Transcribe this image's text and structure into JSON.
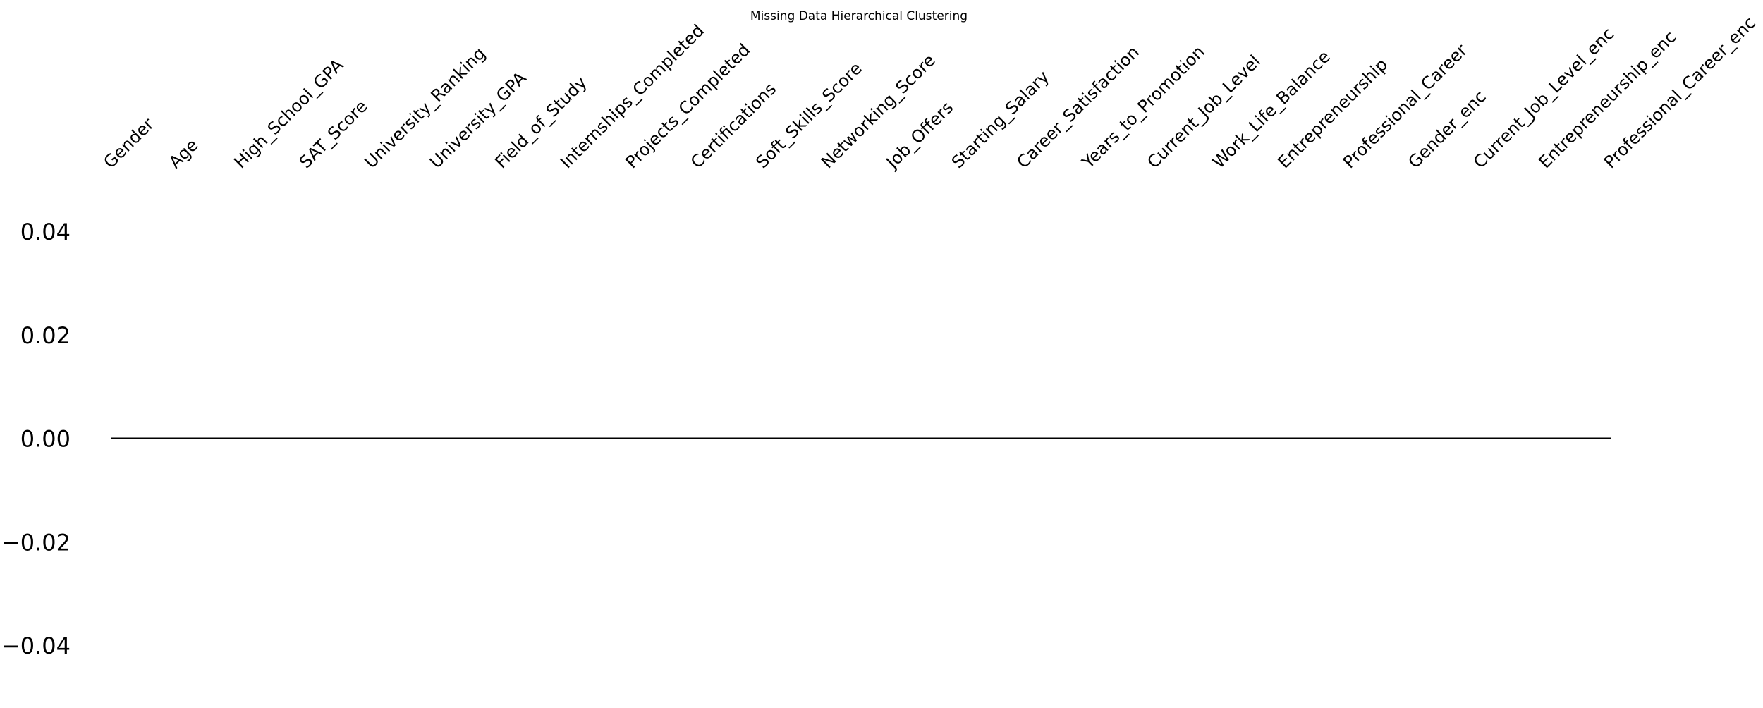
{
  "chart_data": {
    "type": "dendrogram",
    "title": "Missing Data Hierarchical Clustering",
    "variables": [
      "Gender",
      "Age",
      "High_School_GPA",
      "SAT_Score",
      "University_Ranking",
      "University_GPA",
      "Field_of_Study",
      "Internships_Completed",
      "Projects_Completed",
      "Certifications",
      "Soft_Skills_Score",
      "Networking_Score",
      "Job_Offers",
      "Starting_Salary",
      "Career_Satisfaction",
      "Years_to_Promotion",
      "Current_Job_Level",
      "Work_Life_Balance",
      "Entrepreneurship",
      "Professional_Career",
      "Gender_enc",
      "Current_Job_Level_enc",
      "Entrepreneurship_enc",
      "Professional_Career_enc"
    ],
    "merge_height": 0.0,
    "y_ticks": [
      "0.04",
      "0.02",
      "0.00",
      "−0.02",
      "−0.04"
    ],
    "y_tick_values": [
      0.04,
      0.02,
      0.0,
      -0.02,
      -0.04
    ],
    "ylim": [
      -0.045,
      0.045
    ],
    "grid": false
  }
}
